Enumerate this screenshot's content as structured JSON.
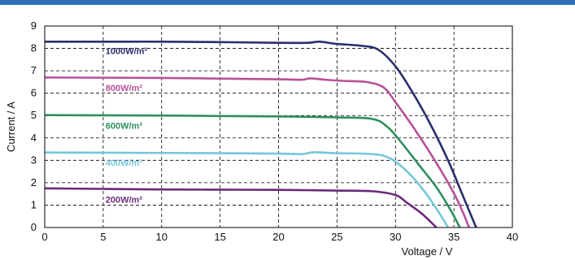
{
  "chart_data": {
    "type": "line",
    "title": "",
    "xlabel": "Voltage / V",
    "ylabel": "Current / A",
    "xlim": [
      0,
      40
    ],
    "ylim": [
      0,
      9
    ],
    "xticks": [
      0,
      5,
      10,
      15,
      20,
      25,
      30,
      35,
      40
    ],
    "yticks": [
      0,
      1,
      2,
      3,
      4,
      5,
      6,
      7,
      8,
      9
    ],
    "grid": true,
    "grid_style": "dashed",
    "legend": "inline labels on curves",
    "series": [
      {
        "name": "1000W/m²",
        "color": "#2b2d6e",
        "points": [
          [
            0,
            8.3
          ],
          [
            5,
            8.3
          ],
          [
            10,
            8.3
          ],
          [
            15,
            8.28
          ],
          [
            20,
            8.25
          ],
          [
            22.5,
            8.25
          ],
          [
            23.5,
            8.3
          ],
          [
            25,
            8.2
          ],
          [
            27,
            8.12
          ],
          [
            28.5,
            7.95
          ],
          [
            30,
            7.2
          ],
          [
            31.5,
            6.0
          ],
          [
            33,
            4.6
          ],
          [
            34.5,
            3.0
          ],
          [
            35.7,
            1.5
          ],
          [
            36.9,
            0
          ]
        ]
      },
      {
        "name": "800W/m²",
        "color": "#b8509a",
        "points": [
          [
            0,
            6.7
          ],
          [
            10,
            6.68
          ],
          [
            15,
            6.65
          ],
          [
            20,
            6.62
          ],
          [
            22,
            6.6
          ],
          [
            22.7,
            6.66
          ],
          [
            24,
            6.6
          ],
          [
            25.5,
            6.55
          ],
          [
            27.5,
            6.5
          ],
          [
            29,
            6.25
          ],
          [
            30,
            5.6
          ],
          [
            31.5,
            4.5
          ],
          [
            33,
            3.3
          ],
          [
            34.5,
            2.0
          ],
          [
            35.5,
            1.0
          ],
          [
            36.3,
            0
          ]
        ]
      },
      {
        "name": "600W/m²",
        "color": "#2e8f5e",
        "points": [
          [
            0,
            5.02
          ],
          [
            10,
            5.0
          ],
          [
            15,
            4.98
          ],
          [
            20,
            4.96
          ],
          [
            25,
            4.92
          ],
          [
            28,
            4.85
          ],
          [
            29.3,
            4.5
          ],
          [
            30.5,
            3.8
          ],
          [
            32,
            2.8
          ],
          [
            33.5,
            1.8
          ],
          [
            34.8,
            0.7
          ],
          [
            35.5,
            0
          ]
        ]
      },
      {
        "name": "400W/m²",
        "color": "#74c7d9",
        "points": [
          [
            0,
            3.35
          ],
          [
            10,
            3.33
          ],
          [
            15,
            3.32
          ],
          [
            20,
            3.3
          ],
          [
            22,
            3.28
          ],
          [
            23,
            3.36
          ],
          [
            25,
            3.32
          ],
          [
            28,
            3.28
          ],
          [
            29.5,
            3.1
          ],
          [
            31,
            2.5
          ],
          [
            32.5,
            1.6
          ],
          [
            33.8,
            0.6
          ],
          [
            34.5,
            0
          ]
        ]
      },
      {
        "name": "200W/m²",
        "color": "#6b2a7a",
        "points": [
          [
            0,
            1.75
          ],
          [
            10,
            1.7
          ],
          [
            15,
            1.69
          ],
          [
            20,
            1.68
          ],
          [
            25,
            1.65
          ],
          [
            28,
            1.62
          ],
          [
            30,
            1.45
          ],
          [
            31,
            1.1
          ],
          [
            32.3,
            0.6
          ],
          [
            33.5,
            0
          ]
        ]
      }
    ],
    "annotations": [
      {
        "text": "1000W/m²",
        "x": 5.2,
        "y": 7.9,
        "color": "#2b2d6e"
      },
      {
        "text": "800W/m²",
        "x": 5.2,
        "y": 6.25,
        "color": "#b8509a"
      },
      {
        "text": "600W/m²",
        "x": 5.2,
        "y": 4.55,
        "color": "#2e8f5e"
      },
      {
        "text": "400W/m²",
        "x": 5.2,
        "y": 2.9,
        "color": "#74c7d9"
      },
      {
        "text": "200W/m²",
        "x": 5.2,
        "y": 1.25,
        "color": "#6b2a7a"
      }
    ]
  }
}
